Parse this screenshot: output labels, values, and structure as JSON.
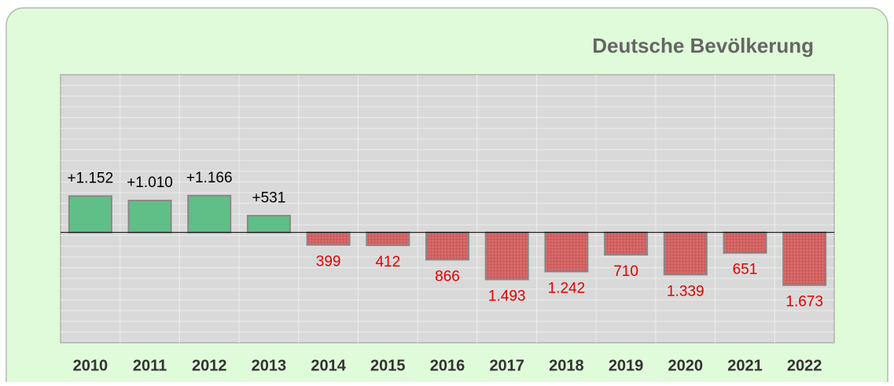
{
  "chart_data": {
    "type": "bar",
    "title": "Deutsche Bevölkerung",
    "categories": [
      "2010",
      "2011",
      "2012",
      "2013",
      "2014",
      "2015",
      "2016",
      "2017",
      "2018",
      "2019",
      "2020",
      "2021",
      "2022"
    ],
    "values": [
      1152,
      1010,
      1166,
      531,
      -399,
      -412,
      -866,
      -1493,
      -1242,
      -710,
      -1339,
      -651,
      -1673
    ],
    "value_labels": [
      "+1.152",
      "+1.010",
      "+1.166",
      "+531",
      "399",
      "412",
      "866",
      "1.493",
      "1.242",
      "710",
      "1.339",
      "651",
      "1.673"
    ],
    "color_positive": "#5fbf86",
    "color_negative": "#d86a6a",
    "ylim": [
      -3500,
      5000
    ],
    "grid": true
  }
}
